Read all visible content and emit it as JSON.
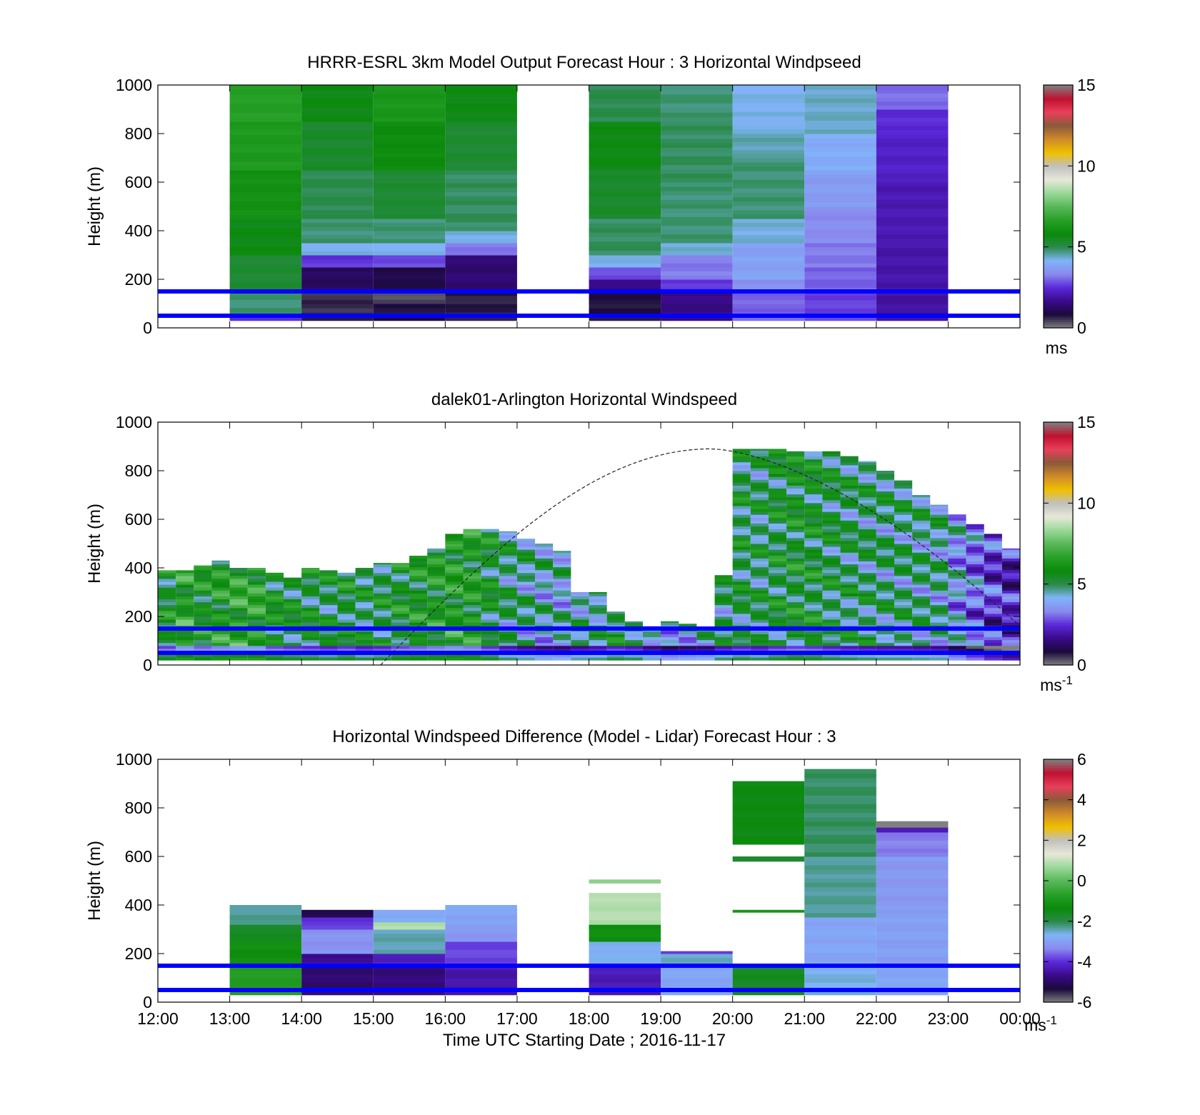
{
  "xlabel": "Time UTC  Starting Date ; 2016-11-17",
  "x_ticks": [
    "12:00",
    "13:00",
    "14:00",
    "15:00",
    "16:00",
    "17:00",
    "18:00",
    "19:00",
    "20:00",
    "21:00",
    "22:00",
    "23:00",
    "00:00"
  ],
  "ref_heights_m": [
    50,
    150
  ],
  "ref_line_color": "#0000ff",
  "colormaps": {
    "speed": [
      "#808080",
      "#1a0a3a",
      "#3a0a8a",
      "#5a28d8",
      "#8a8aee",
      "#80b4f8",
      "#2a8a4a",
      "#0a8a0a",
      "#28a028",
      "#58b858",
      "#98d898",
      "#e8e8d8",
      "#c0c0c0",
      "#f0c000",
      "#d08a2a",
      "#8a5a3a",
      "#e8405a",
      "#c01030",
      "#808080"
    ],
    "diff": [
      "#808080",
      "#1a0a3a",
      "#3a0a8a",
      "#5a28d8",
      "#8a8aee",
      "#80b4f8",
      "#2a8a4a",
      "#0a8a0a",
      "#28a028",
      "#58b858",
      "#98d898",
      "#e8e8d8",
      "#c0c0c0",
      "#f0c000",
      "#d08a2a",
      "#8a5a3a",
      "#e8405a",
      "#c01030",
      "#808080"
    ]
  },
  "chart_data": [
    {
      "type": "heatmap",
      "title": "HRRR-ESRL 3km Model Output   Forecast Hour : 3 Horizontal Windpseed",
      "ylabel": "Height (m)",
      "ylim": [
        0,
        1000
      ],
      "y_ticks": [
        "0",
        "200",
        "400",
        "600",
        "800",
        "1000"
      ],
      "colorbar": {
        "range": [
          0,
          15
        ],
        "ticks": [
          "0",
          "5",
          "10",
          "15"
        ],
        "unit": "ms",
        "colormap": "speed"
      },
      "x_hours": [
        12,
        13,
        14,
        15,
        16,
        17,
        18,
        19,
        20,
        21,
        22,
        23,
        24
      ],
      "columns": [
        {
          "start": 13,
          "end": 14,
          "cells": [
            [
              30,
              50,
              2.5
            ],
            [
              50,
              150,
              4.8
            ],
            [
              150,
              300,
              5.3
            ],
            [
              300,
              450,
              5.7
            ],
            [
              450,
              650,
              6.1
            ],
            [
              650,
              850,
              6.4
            ],
            [
              850,
              1000,
              6.6
            ]
          ]
        },
        {
          "start": 14,
          "end": 15,
          "cells": [
            [
              30,
              150,
              0.6
            ],
            [
              150,
              250,
              1.2
            ],
            [
              250,
              300,
              2.6
            ],
            [
              300,
              350,
              4.2
            ],
            [
              350,
              450,
              4.8
            ],
            [
              450,
              650,
              5.0
            ],
            [
              650,
              850,
              5.4
            ],
            [
              850,
              1000,
              5.7
            ]
          ]
        },
        {
          "start": 15,
          "end": 16,
          "cells": [
            [
              30,
              100,
              0.8
            ],
            [
              100,
              150,
              0.4
            ],
            [
              150,
              250,
              1.0
            ],
            [
              250,
              300,
              2.8
            ],
            [
              300,
              350,
              4.2
            ],
            [
              350,
              450,
              4.8
            ],
            [
              450,
              650,
              5.3
            ],
            [
              650,
              850,
              5.9
            ],
            [
              850,
              1000,
              6.3
            ]
          ]
        },
        {
          "start": 16,
          "end": 17,
          "cells": [
            [
              30,
              150,
              0.7
            ],
            [
              150,
              300,
              1.4
            ],
            [
              300,
              350,
              3.2
            ],
            [
              350,
              400,
              4.3
            ],
            [
              400,
              650,
              4.9
            ],
            [
              650,
              850,
              5.3
            ],
            [
              850,
              1000,
              5.7
            ]
          ]
        },
        {
          "start": 18,
          "end": 19,
          "cells": [
            [
              30,
              150,
              0.8
            ],
            [
              150,
              200,
              1.6
            ],
            [
              200,
              250,
              2.8
            ],
            [
              250,
              300,
              4.2
            ],
            [
              300,
              450,
              4.9
            ],
            [
              450,
              650,
              5.4
            ],
            [
              650,
              850,
              5.7
            ],
            [
              850,
              1000,
              5.0
            ]
          ]
        },
        {
          "start": 19,
          "end": 20,
          "cells": [
            [
              30,
              150,
              1.6
            ],
            [
              150,
              200,
              2.6
            ],
            [
              200,
              300,
              3.2
            ],
            [
              300,
              350,
              4.3
            ],
            [
              350,
              600,
              4.8
            ],
            [
              600,
              850,
              4.9
            ],
            [
              850,
              1000,
              4.8
            ]
          ]
        },
        {
          "start": 20,
          "end": 21,
          "cells": [
            [
              30,
              150,
              3.0
            ],
            [
              150,
              200,
              3.5
            ],
            [
              200,
              350,
              3.8
            ],
            [
              350,
              450,
              4.3
            ],
            [
              450,
              700,
              4.8
            ],
            [
              700,
              800,
              4.5
            ],
            [
              800,
              1000,
              4.2
            ]
          ]
        },
        {
          "start": 21,
          "end": 22,
          "cells": [
            [
              30,
              150,
              2.7
            ],
            [
              150,
              250,
              3.0
            ],
            [
              250,
              350,
              3.2
            ],
            [
              350,
              500,
              3.4
            ],
            [
              500,
              650,
              3.7
            ],
            [
              650,
              800,
              4.0
            ],
            [
              800,
              1000,
              4.4
            ]
          ]
        },
        {
          "start": 22,
          "end": 23,
          "cells": [
            [
              30,
              150,
              1.9
            ],
            [
              150,
              350,
              2.0
            ],
            [
              350,
              600,
              2.1
            ],
            [
              600,
              800,
              2.3
            ],
            [
              800,
              900,
              2.5
            ],
            [
              900,
              1000,
              3.1
            ]
          ]
        }
      ]
    },
    {
      "type": "heatmap",
      "title": "dalek01-Arlington  Horizontal Windspeed",
      "ylabel": "Height (m)",
      "ylim": [
        0,
        1000
      ],
      "y_ticks": [
        "0",
        "200",
        "400",
        "600",
        "800",
        "1000"
      ],
      "colorbar": {
        "range": [
          0,
          15
        ],
        "ticks": [
          "0",
          "5",
          "10",
          "15"
        ],
        "unit": "ms",
        "unit_sup": "-1",
        "colormap": "speed"
      },
      "x_hours": [
        12,
        13,
        14,
        15,
        16,
        17,
        18,
        19,
        20,
        21,
        22,
        23,
        24
      ],
      "columns_per_hour": 4,
      "column_tops_m": [
        390,
        390,
        410,
        430,
        400,
        400,
        380,
        360,
        400,
        390,
        380,
        400,
        420,
        420,
        450,
        480,
        540,
        560,
        560,
        550,
        520,
        500,
        470,
        300,
        300,
        220,
        180,
        160,
        180,
        170,
        150,
        370,
        890,
        890,
        890,
        880,
        880,
        880,
        860,
        840,
        800,
        760,
        700,
        660,
        620,
        580,
        540,
        480
      ],
      "column_speed_m_s": [
        5.6,
        6.4,
        5.9,
        6.2,
        6.6,
        6.5,
        5.7,
        5.5,
        5.4,
        5.2,
        5.5,
        5.1,
        5.3,
        5.7,
        5.9,
        6.1,
        6.3,
        6.1,
        5.5,
        4.9,
        4.6,
        4.3,
        4.2,
        4.6,
        4.8,
        5.2,
        5.0,
        4.4,
        3.9,
        4.1,
        4.2,
        4.9,
        5.2,
        5.0,
        5.4,
        5.6,
        5.5,
        5.2,
        5.0,
        4.9,
        4.8,
        4.8,
        4.7,
        4.6,
        3.8,
        3.2,
        2.6,
        2.2
      ],
      "curve": {
        "start": 15.1,
        "peak": 19.7,
        "peak_height": 890,
        "end": 24,
        "end_height": 160,
        "style": "dashed"
      }
    },
    {
      "type": "heatmap",
      "title": "Horizontal Windspeed Difference (Model - Lidar) Forecast Hour : 3",
      "ylabel": "Height (m)",
      "ylim": [
        0,
        1000
      ],
      "y_ticks": [
        "0",
        "200",
        "400",
        "600",
        "800",
        "1000"
      ],
      "colorbar": {
        "range": [
          -6,
          6
        ],
        "ticks": [
          "-6",
          "-4",
          "-2",
          "0",
          "2",
          "4",
          "6"
        ],
        "unit": "ms",
        "unit_sup": "-1",
        "colormap": "diff"
      },
      "x_hours": [
        12,
        13,
        14,
        15,
        16,
        17,
        18,
        19,
        20,
        21,
        22,
        23,
        24
      ],
      "columns": [
        {
          "start": 13,
          "end": 14,
          "cells": [
            [
              30,
              150,
              -0.8
            ],
            [
              150,
              250,
              -1.2
            ],
            [
              250,
              320,
              -1.6
            ],
            [
              320,
              400,
              -2.3
            ]
          ]
        },
        {
          "start": 14,
          "end": 15,
          "cells": [
            [
              30,
              150,
              -4.9
            ],
            [
              150,
              200,
              -4.6
            ],
            [
              200,
              300,
              -3.2
            ],
            [
              300,
              350,
              -3.9
            ],
            [
              350,
              380,
              -5.2
            ]
          ]
        },
        {
          "start": 15,
          "end": 16,
          "cells": [
            [
              30,
              150,
              -4.8
            ],
            [
              150,
              200,
              -4.2
            ],
            [
              200,
              300,
              -2.4
            ],
            [
              300,
              330,
              0.9
            ],
            [
              330,
              380,
              -2.8
            ]
          ]
        },
        {
          "start": 16,
          "end": 17,
          "cells": [
            [
              30,
              150,
              -4.4
            ],
            [
              150,
              250,
              -3.8
            ],
            [
              250,
              320,
              -3.1
            ],
            [
              320,
              400,
              -2.9
            ]
          ]
        },
        {
          "start": 18,
          "end": 19,
          "cells": [
            [
              30,
              150,
              -4.3
            ],
            [
              150,
              250,
              -2.7
            ],
            [
              250,
              320,
              -1.2
            ],
            [
              320,
              450,
              0.9
            ],
            [
              490,
              505,
              0.6
            ]
          ]
        },
        {
          "start": 19,
          "end": 20,
          "cells": [
            [
              30,
              150,
              -2.9
            ],
            [
              150,
              200,
              -2.5
            ],
            [
              200,
              210,
              -3.9
            ]
          ]
        },
        {
          "start": 20,
          "end": 21,
          "cells": [
            [
              30,
              150,
              -1.6
            ],
            [
              370,
              380,
              -1.1
            ],
            [
              580,
              600,
              -1.8
            ],
            [
              650,
              910,
              -1.4
            ]
          ]
        },
        {
          "start": 21,
          "end": 22,
          "cells": [
            [
              30,
              150,
              -2.6
            ],
            [
              150,
              350,
              -2.9
            ],
            [
              350,
              600,
              -2.3
            ],
            [
              600,
              960,
              -2.1
            ]
          ]
        },
        {
          "start": 22,
          "end": 23,
          "cells": [
            [
              30,
              150,
              -2.9
            ],
            [
              150,
              400,
              -3.0
            ],
            [
              400,
              600,
              -3.1
            ],
            [
              600,
              700,
              -3.4
            ],
            [
              700,
              720,
              -4.3
            ],
            [
              720,
              745,
              6.0
            ]
          ]
        }
      ]
    }
  ]
}
